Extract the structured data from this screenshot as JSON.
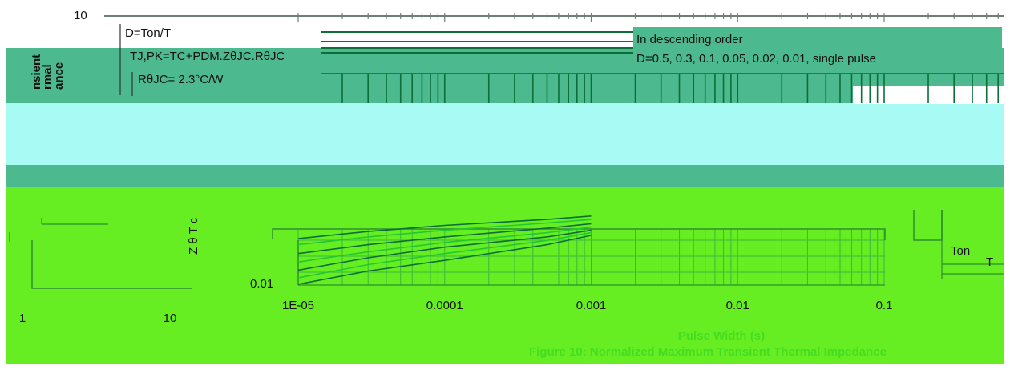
{
  "figure": {
    "caption": "Figure 10: Normalized Maximum Transient Thermal Impedance",
    "axis_label_left_partial": [
      "nsient",
      "rmal",
      "ance"
    ]
  },
  "colors": {
    "band_teal": "#4cb98f",
    "band_cyan": "#a8fbf4",
    "band_green": "#66ee22",
    "line_dark_green": "#0b6f37",
    "line_bright_green": "#22c830",
    "caption_green": "#44dd22"
  },
  "annotations": {
    "duty": "D=Ton/T",
    "tj_formula": "TJ,PK=TC+PDM.ZθJC.RθJC",
    "rth": "RθJC= 2.3°C/W",
    "order_title": "In descending order",
    "order_values": "D=0.5, 0.3, 0.1, 0.05, 0.02, 0.01, single pulse",
    "ton": "Ton",
    "t": "T",
    "zt": "Z θ T c"
  },
  "chart_data": [
    {
      "type": "line",
      "title": "",
      "xlabel": "Pulse Width (s)",
      "ylabel": "",
      "xscale": "log",
      "yscale": "log",
      "xlim": [
        1e-05,
        1
      ],
      "ylim": [
        0.01,
        10
      ],
      "x_ticks": [
        "1E-05",
        "0.0001",
        "0.001",
        "0.01",
        "0.1"
      ],
      "y_ticks": [
        "10",
        "0.01"
      ],
      "grid": true,
      "series": [
        {
          "values": [
            [
              1e-05,
              0.11
            ],
            [
              3e-05,
              0.16
            ],
            [
              0.0001,
              0.22
            ],
            [
              0.0005,
              0.3
            ],
            [
              0.001,
              0.36
            ]
          ]
        },
        {
          "values": [
            [
              1e-05,
              0.08
            ],
            [
              3e-05,
              0.12
            ],
            [
              0.0001,
              0.17
            ],
            [
              0.0005,
              0.25
            ],
            [
              0.001,
              0.3
            ]
          ]
        },
        {
          "values": [
            [
              1e-05,
              0.05
            ],
            [
              3e-05,
              0.08
            ],
            [
              0.0001,
              0.12
            ],
            [
              0.0005,
              0.19
            ],
            [
              0.001,
              0.24
            ]
          ]
        },
        {
          "values": [
            [
              1e-05,
              0.032
            ],
            [
              3e-05,
              0.055
            ],
            [
              0.0001,
              0.09
            ],
            [
              0.0005,
              0.15
            ],
            [
              0.001,
              0.2
            ]
          ]
        },
        {
          "values": [
            [
              1e-05,
              0.021
            ],
            [
              3e-05,
              0.04
            ],
            [
              0.0001,
              0.07
            ],
            [
              0.0005,
              0.12
            ],
            [
              0.001,
              0.17
            ]
          ]
        },
        {
          "values": [
            [
              1e-05,
              0.014
            ],
            [
              3e-05,
              0.028
            ],
            [
              0.0001,
              0.05
            ],
            [
              0.0005,
              0.1
            ],
            [
              0.001,
              0.15
            ]
          ]
        },
        {
          "values": [
            [
              1e-05,
              0.01
            ],
            [
              3e-05,
              0.02
            ],
            [
              0.0001,
              0.035
            ],
            [
              0.0005,
              0.08
            ],
            [
              0.001,
              0.13
            ]
          ]
        }
      ]
    },
    {
      "type": "line",
      "title": "",
      "xlabel": "",
      "ylabel": "",
      "xscale": "log",
      "xlim": [
        1,
        10
      ],
      "x_ticks": [
        "1",
        "10"
      ],
      "series": []
    }
  ]
}
